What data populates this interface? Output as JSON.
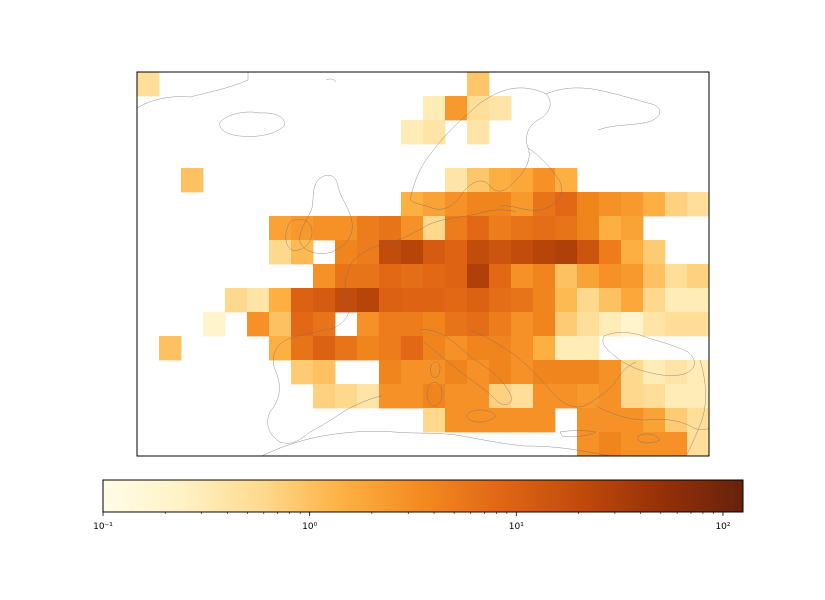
{
  "chart_data": {
    "type": "heatmap",
    "title": "",
    "xlabel": "",
    "ylabel": "",
    "projection": "map of Europe with coastlines",
    "colormap": "YlOrBr-like (pale yellow to dark brown)",
    "color_stops": [
      "#fffce8",
      "#fff2c4",
      "#fed98e",
      "#fdb042",
      "#f38a20",
      "#e06515",
      "#bf4a0a",
      "#963008",
      "#66220b"
    ],
    "scale": "log",
    "colorbar": {
      "orientation": "horizontal",
      "range": [
        0.1,
        125
      ],
      "ticks": [
        0.1,
        1,
        10,
        100
      ],
      "tick_labels": [
        "10⁻¹",
        "10⁰",
        "10¹",
        "10²"
      ]
    },
    "grid_note": "Values are approximate, read from cell colours on the log scale; columns run west to east, rows north to south.",
    "cells": [
      [
        0,
        15,
        0.5
      ],
      [
        15,
        15,
        0.9
      ],
      [
        13,
        14,
        0.3
      ],
      [
        14,
        14,
        2.5
      ],
      [
        15,
        14,
        0.5
      ],
      [
        16,
        14,
        0.4
      ],
      [
        12,
        13,
        0.3
      ],
      [
        13,
        13,
        0.4
      ],
      [
        15,
        13,
        0.4
      ],
      [
        2,
        11,
        1.0
      ],
      [
        14,
        11,
        0.4
      ],
      [
        15,
        11,
        0.9
      ],
      [
        16,
        11,
        1.5
      ],
      [
        17,
        11,
        1.8
      ],
      [
        18,
        11,
        3
      ],
      [
        19,
        11,
        1.5
      ],
      [
        12,
        10,
        1.5
      ],
      [
        13,
        10,
        2.0
      ],
      [
        14,
        10,
        3
      ],
      [
        15,
        10,
        4
      ],
      [
        16,
        10,
        4
      ],
      [
        17,
        10,
        2.5
      ],
      [
        18,
        10,
        6
      ],
      [
        19,
        10,
        8
      ],
      [
        20,
        10,
        4
      ],
      [
        21,
        10,
        3
      ],
      [
        22,
        10,
        2.5
      ],
      [
        23,
        10,
        1.5
      ],
      [
        24,
        10,
        0.7
      ],
      [
        25,
        10,
        0.5
      ],
      [
        6,
        9,
        2.0
      ],
      [
        7,
        9,
        2.5
      ],
      [
        8,
        9,
        3
      ],
      [
        9,
        9,
        3
      ],
      [
        10,
        9,
        5
      ],
      [
        11,
        9,
        6
      ],
      [
        12,
        9,
        3
      ],
      [
        13,
        9,
        0.6
      ],
      [
        14,
        9,
        5
      ],
      [
        15,
        9,
        8
      ],
      [
        16,
        9,
        5
      ],
      [
        17,
        9,
        6
      ],
      [
        18,
        9,
        7
      ],
      [
        19,
        9,
        6
      ],
      [
        20,
        9,
        4
      ],
      [
        21,
        9,
        1.5
      ],
      [
        22,
        9,
        2.0
      ],
      [
        6,
        8,
        0.6
      ],
      [
        7,
        8,
        1.2
      ],
      [
        9,
        8,
        4
      ],
      [
        10,
        8,
        5
      ],
      [
        11,
        8,
        20
      ],
      [
        12,
        8,
        25
      ],
      [
        13,
        8,
        12
      ],
      [
        14,
        8,
        9
      ],
      [
        15,
        8,
        20
      ],
      [
        16,
        8,
        15
      ],
      [
        17,
        8,
        20
      ],
      [
        18,
        8,
        25
      ],
      [
        19,
        8,
        30
      ],
      [
        20,
        8,
        15
      ],
      [
        21,
        8,
        5
      ],
      [
        22,
        8,
        1.5
      ],
      [
        23,
        8,
        0.8
      ],
      [
        8,
        7,
        3
      ],
      [
        9,
        7,
        6
      ],
      [
        10,
        7,
        6
      ],
      [
        11,
        7,
        8
      ],
      [
        12,
        7,
        7
      ],
      [
        13,
        7,
        8
      ],
      [
        14,
        7,
        9
      ],
      [
        15,
        7,
        30
      ],
      [
        16,
        7,
        8
      ],
      [
        17,
        7,
        3
      ],
      [
        18,
        7,
        4
      ],
      [
        19,
        7,
        1.0
      ],
      [
        20,
        7,
        2.0
      ],
      [
        21,
        7,
        3
      ],
      [
        22,
        7,
        2.5
      ],
      [
        23,
        7,
        1.0
      ],
      [
        24,
        7,
        0.5
      ],
      [
        25,
        7,
        0.7
      ],
      [
        4,
        6,
        0.6
      ],
      [
        5,
        6,
        0.4
      ],
      [
        6,
        6,
        1.5
      ],
      [
        7,
        6,
        10
      ],
      [
        8,
        6,
        12
      ],
      [
        9,
        6,
        20
      ],
      [
        10,
        6,
        25
      ],
      [
        11,
        6,
        10
      ],
      [
        12,
        6,
        9
      ],
      [
        13,
        6,
        9
      ],
      [
        14,
        6,
        8
      ],
      [
        15,
        6,
        10
      ],
      [
        16,
        6,
        7
      ],
      [
        17,
        6,
        6
      ],
      [
        18,
        6,
        4
      ],
      [
        19,
        6,
        1.2
      ],
      [
        20,
        6,
        0.6
      ],
      [
        21,
        6,
        1.0
      ],
      [
        22,
        6,
        1.8
      ],
      [
        23,
        6,
        0.6
      ],
      [
        24,
        6,
        0.3
      ],
      [
        25,
        6,
        0.3
      ],
      [
        3,
        5,
        0.2
      ],
      [
        5,
        5,
        3
      ],
      [
        6,
        5,
        1.0
      ],
      [
        7,
        5,
        8
      ],
      [
        8,
        5,
        6
      ],
      [
        10,
        5,
        3
      ],
      [
        11,
        5,
        5
      ],
      [
        12,
        5,
        5
      ],
      [
        13,
        5,
        4
      ],
      [
        14,
        5,
        6
      ],
      [
        15,
        5,
        7
      ],
      [
        16,
        5,
        5
      ],
      [
        17,
        5,
        3
      ],
      [
        18,
        5,
        4
      ],
      [
        19,
        5,
        0.8
      ],
      [
        20,
        5,
        0.5
      ],
      [
        21,
        5,
        0.3
      ],
      [
        22,
        5,
        0.2
      ],
      [
        23,
        5,
        0.4
      ],
      [
        24,
        5,
        0.5
      ],
      [
        25,
        5,
        0.5
      ],
      [
        1,
        4,
        1.0
      ],
      [
        6,
        4,
        1.5
      ],
      [
        7,
        4,
        6
      ],
      [
        8,
        4,
        10
      ],
      [
        9,
        4,
        6
      ],
      [
        10,
        4,
        4
      ],
      [
        11,
        4,
        5
      ],
      [
        12,
        4,
        8
      ],
      [
        13,
        4,
        4
      ],
      [
        14,
        4,
        3
      ],
      [
        15,
        4,
        4
      ],
      [
        16,
        4,
        4
      ],
      [
        17,
        4,
        3
      ],
      [
        18,
        4,
        1.5
      ],
      [
        19,
        4,
        0.3
      ],
      [
        20,
        4,
        0.3
      ],
      [
        7,
        3,
        0.8
      ],
      [
        8,
        3,
        1.0
      ],
      [
        11,
        3,
        4
      ],
      [
        12,
        3,
        3
      ],
      [
        13,
        3,
        3
      ],
      [
        14,
        3,
        4
      ],
      [
        15,
        3,
        3
      ],
      [
        16,
        3,
        4
      ],
      [
        17,
        3,
        3
      ],
      [
        18,
        3,
        4
      ],
      [
        19,
        3,
        4
      ],
      [
        20,
        3,
        4
      ],
      [
        21,
        3,
        3
      ],
      [
        22,
        3,
        0.6
      ],
      [
        23,
        3,
        0.3
      ],
      [
        24,
        3,
        0.4
      ],
      [
        25,
        3,
        0.3
      ],
      [
        8,
        2,
        0.7
      ],
      [
        9,
        2,
        0.6
      ],
      [
        10,
        2,
        0.4
      ],
      [
        11,
        2,
        3
      ],
      [
        12,
        2,
        3
      ],
      [
        13,
        2,
        4
      ],
      [
        14,
        2,
        3
      ],
      [
        15,
        2,
        3
      ],
      [
        16,
        2,
        0.7
      ],
      [
        17,
        2,
        0.5
      ],
      [
        18,
        2,
        3
      ],
      [
        19,
        2,
        3
      ],
      [
        20,
        2,
        2.5
      ],
      [
        21,
        2,
        3
      ],
      [
        22,
        2,
        0.6
      ],
      [
        23,
        2,
        0.5
      ],
      [
        24,
        2,
        0.3
      ],
      [
        25,
        2,
        0.3
      ],
      [
        13,
        1,
        0.6
      ],
      [
        14,
        1,
        3
      ],
      [
        15,
        1,
        3
      ],
      [
        16,
        1,
        3
      ],
      [
        17,
        1,
        3
      ],
      [
        18,
        1,
        3
      ],
      [
        20,
        1,
        3
      ],
      [
        21,
        1,
        3
      ],
      [
        22,
        1,
        3
      ],
      [
        23,
        1,
        2.0
      ],
      [
        24,
        1,
        0.8
      ],
      [
        25,
        1,
        0.5
      ],
      [
        20,
        0,
        3
      ],
      [
        21,
        0,
        4
      ],
      [
        22,
        0,
        3
      ],
      [
        23,
        0,
        3
      ],
      [
        24,
        0,
        3
      ],
      [
        25,
        0,
        0.5
      ]
    ]
  }
}
